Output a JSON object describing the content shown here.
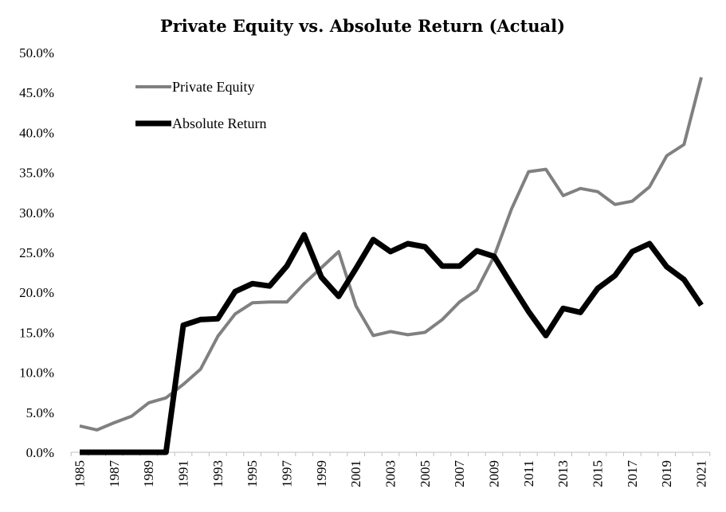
{
  "chart_data": {
    "type": "line",
    "title": "Private Equity vs. Absolute Return (Actual)",
    "xlabel": "",
    "ylabel": "",
    "x": [
      1985,
      1986,
      1987,
      1988,
      1989,
      1990,
      1991,
      1992,
      1993,
      1994,
      1995,
      1996,
      1997,
      1998,
      1999,
      2000,
      2001,
      2002,
      2003,
      2004,
      2005,
      2006,
      2007,
      2008,
      2009,
      2010,
      2011,
      2012,
      2013,
      2014,
      2015,
      2016,
      2017,
      2018,
      2019,
      2020,
      2021
    ],
    "x_tick_labels": [
      "1985",
      "1987",
      "1989",
      "1991",
      "1993",
      "1995",
      "1997",
      "1999",
      "2001",
      "2003",
      "2005",
      "2007",
      "2009",
      "2011",
      "2013",
      "2015",
      "2017",
      "2019",
      "2021"
    ],
    "ylim": [
      0,
      0.5
    ],
    "y_ticks": [
      0,
      0.05,
      0.1,
      0.15,
      0.2,
      0.25,
      0.3,
      0.35,
      0.4,
      0.45,
      0.5
    ],
    "y_tick_labels": [
      "0.0%",
      "5.0%",
      "10.0%",
      "15.0%",
      "20.0%",
      "25.0%",
      "30.0%",
      "35.0%",
      "40.0%",
      "45.0%",
      "50.0%"
    ],
    "grid": false,
    "legend_position": "top-left",
    "series": [
      {
        "name": "Private Equity",
        "color": "#808080",
        "values": [
          0.033,
          0.028,
          0.037,
          0.045,
          0.062,
          0.068,
          0.085,
          0.104,
          0.145,
          0.173,
          0.187,
          0.188,
          0.188,
          0.211,
          0.231,
          0.251,
          0.183,
          0.146,
          0.151,
          0.147,
          0.15,
          0.166,
          0.188,
          0.203,
          0.245,
          0.304,
          0.351,
          0.354,
          0.321,
          0.33,
          0.326,
          0.31,
          0.314,
          0.332,
          0.371,
          0.385,
          0.469
        ]
      },
      {
        "name": "Absolute Return",
        "color": "#000000",
        "values": [
          0,
          0,
          0,
          0,
          0,
          0,
          0.159,
          0.166,
          0.167,
          0.201,
          0.211,
          0.208,
          0.233,
          0.272,
          0.219,
          0.195,
          0.23,
          0.266,
          0.251,
          0.261,
          0.257,
          0.233,
          0.233,
          0.252,
          0.245,
          0.21,
          0.176,
          0.146,
          0.18,
          0.175,
          0.205,
          0.221,
          0.251,
          0.261,
          0.232,
          0.216,
          0.184
        ]
      }
    ]
  }
}
